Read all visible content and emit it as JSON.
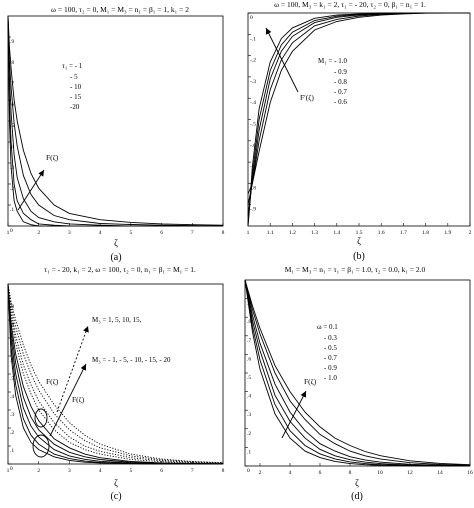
{
  "chart_data": [
    {
      "id": "a",
      "type": "line",
      "title": "ω = 100, τ₂ = 0, M₁ = M₃ = n₁ = β₁ = 1, k₁ = 2",
      "xlabel": "ζ",
      "ylabel": "",
      "caption": "(a)",
      "xlim": [
        1,
        8
      ],
      "ylim": [
        0,
        1
      ],
      "xticks": [
        1,
        2,
        3,
        4,
        5,
        6,
        7,
        8
      ],
      "yticks": [
        0,
        0.1,
        0.2,
        0.3,
        0.4,
        0.5,
        0.6,
        0.7,
        0.8,
        0.9
      ],
      "legend_title": "τ₁ = - 1",
      "legend_items": [
        "- 5",
        "- 10",
        "- 15",
        "-20"
      ],
      "annotation": "F(ζ)",
      "series": [
        {
          "x": [
            1,
            1.05,
            1.1,
            1.2,
            1.3,
            1.5,
            1.75,
            2,
            2.5,
            3,
            4,
            5,
            6,
            7,
            8
          ],
          "y": [
            1,
            0.49,
            0.28,
            0.12,
            0.07,
            0.02,
            0.006,
            0,
            0,
            0,
            0,
            0,
            0,
            0,
            0
          ]
        },
        {
          "x": [
            1,
            1.05,
            1.1,
            1.2,
            1.3,
            1.5,
            1.75,
            2,
            2.5,
            3,
            4,
            5,
            6,
            7,
            8
          ],
          "y": [
            1,
            0.58,
            0.4,
            0.2,
            0.12,
            0.06,
            0.03,
            0.01,
            0.004,
            0,
            0,
            0,
            0,
            0,
            0
          ]
        },
        {
          "x": [
            1,
            1.05,
            1.1,
            1.2,
            1.3,
            1.5,
            1.75,
            2,
            2.5,
            3,
            4,
            5,
            6,
            7,
            8
          ],
          "y": [
            1,
            0.7,
            0.54,
            0.34,
            0.23,
            0.13,
            0.07,
            0.04,
            0.02,
            0.01,
            0.004,
            0,
            0,
            0,
            0
          ]
        },
        {
          "x": [
            1,
            1.05,
            1.1,
            1.2,
            1.3,
            1.5,
            1.75,
            2,
            2.5,
            3,
            4,
            5,
            6,
            7,
            8
          ],
          "y": [
            1,
            0.78,
            0.66,
            0.49,
            0.38,
            0.24,
            0.15,
            0.1,
            0.05,
            0.03,
            0.012,
            0.007,
            0.004,
            0.002,
            0.001
          ]
        },
        {
          "x": [
            1,
            1.05,
            1.1,
            1.2,
            1.3,
            1.5,
            1.75,
            2,
            2.5,
            3,
            4,
            5,
            6,
            7,
            8
          ],
          "y": [
            1,
            0.85,
            0.75,
            0.6,
            0.5,
            0.36,
            0.25,
            0.18,
            0.1,
            0.06,
            0.03,
            0.017,
            0.01,
            0.006,
            0.004
          ]
        }
      ]
    },
    {
      "id": "b",
      "type": "line",
      "title": "ω = 100, M₃ = k₁ = 2, τ₁ = - 20, τ₂ = 0, β₁ = n₁ = 1.",
      "xlabel": "ζ",
      "ylabel": "",
      "caption": "(b)",
      "xlim": [
        1,
        2
      ],
      "ylim": [
        -1,
        0
      ],
      "xticks": [
        1,
        1.1,
        1.2,
        1.3,
        1.4,
        1.5,
        1.6,
        1.7,
        1.8,
        1.9,
        2
      ],
      "yticks": [
        0,
        -0.1,
        -0.2,
        -0.3,
        -0.4,
        -0.5,
        -0.6,
        -0.7,
        -0.8,
        -0.9
      ],
      "legend_title": "M₁ = - 1.0",
      "legend_items": [
        "- 0.9",
        "- 0.8",
        "- 0.7",
        "- 0.6"
      ],
      "annotation": "F′(ζ)",
      "series": [
        {
          "x": [
            1,
            1.02,
            1.05,
            1.1,
            1.15,
            1.2,
            1.3,
            1.4,
            1.5,
            1.6,
            1.7,
            1.8,
            1.9,
            2
          ],
          "y": [
            -1,
            -0.72,
            -0.45,
            -0.23,
            -0.12,
            -0.07,
            -0.025,
            -0.01,
            -0.004,
            0,
            0,
            0,
            0,
            0
          ]
        },
        {
          "x": [
            1,
            1.02,
            1.05,
            1.1,
            1.15,
            1.2,
            1.3,
            1.4,
            1.5,
            1.6,
            1.7,
            1.8,
            1.9,
            2
          ],
          "y": [
            -1,
            -0.76,
            -0.5,
            -0.27,
            -0.15,
            -0.09,
            -0.035,
            -0.015,
            -0.006,
            -0.002,
            0,
            0,
            0,
            0
          ]
        },
        {
          "x": [
            1,
            1.02,
            1.05,
            1.1,
            1.15,
            1.2,
            1.3,
            1.4,
            1.5,
            1.6,
            1.7,
            1.8,
            1.9,
            2
          ],
          "y": [
            -0.95,
            -0.79,
            -0.55,
            -0.31,
            -0.18,
            -0.11,
            -0.045,
            -0.02,
            -0.009,
            -0.004,
            -0.001,
            0,
            0,
            0
          ]
        },
        {
          "x": [
            1,
            1.02,
            1.05,
            1.1,
            1.15,
            1.2,
            1.3,
            1.4,
            1.5,
            1.6,
            1.7,
            1.8,
            1.9,
            2
          ],
          "y": [
            -0.9,
            -0.8,
            -0.6,
            -0.36,
            -0.22,
            -0.14,
            -0.06,
            -0.03,
            -0.014,
            -0.006,
            -0.002,
            0,
            0,
            0
          ]
        },
        {
          "x": [
            1,
            1.02,
            1.05,
            1.1,
            1.15,
            1.2,
            1.3,
            1.4,
            1.5,
            1.6,
            1.7,
            1.8,
            1.9,
            2
          ],
          "y": [
            -0.85,
            -0.8,
            -0.65,
            -0.42,
            -0.27,
            -0.18,
            -0.08,
            -0.04,
            -0.02,
            -0.01,
            -0.004,
            -0.001,
            0,
            0
          ]
        }
      ]
    },
    {
      "id": "c",
      "type": "line",
      "title": "τ₁ = - 20, k₁ = 2, ω = 100, τ₂ = 0, n₁ = β₁ = M₁ = 1.",
      "xlabel": "ζ",
      "ylabel": "",
      "caption": "(c)",
      "xlim": [
        1,
        8
      ],
      "ylim": [
        0,
        1
      ],
      "xticks": [
        1,
        2,
        3,
        4,
        5,
        6,
        7,
        8
      ],
      "yticks": [
        0,
        0.1,
        0.2,
        0.3,
        0.4,
        0.5,
        0.6,
        0.7,
        0.8,
        0.9
      ],
      "legend_items": [
        "M₃ = 1, 5, 10, 15,",
        "M₃ = - 1, - 5, - 10, - 15, - 20"
      ],
      "annotations": [
        "F(ζ)",
        "F(ζ)"
      ],
      "series_dotted": [
        {
          "x": [
            1,
            1.1,
            1.25,
            1.5,
            1.75,
            2,
            2.5,
            3,
            3.5,
            4,
            5,
            6,
            7,
            8
          ],
          "y": [
            1,
            0.82,
            0.67,
            0.5,
            0.39,
            0.3,
            0.19,
            0.12,
            0.08,
            0.055,
            0.025,
            0.012,
            0.006,
            0.003
          ]
        },
        {
          "x": [
            1,
            1.1,
            1.25,
            1.5,
            1.75,
            2,
            2.5,
            3,
            3.5,
            4,
            5,
            6,
            7,
            8
          ],
          "y": [
            1,
            0.85,
            0.71,
            0.55,
            0.44,
            0.35,
            0.23,
            0.15,
            0.1,
            0.07,
            0.035,
            0.018,
            0.009,
            0.005
          ]
        },
        {
          "x": [
            1,
            1.1,
            1.25,
            1.5,
            1.75,
            2,
            2.5,
            3,
            3.5,
            4,
            5,
            6,
            7,
            8
          ],
          "y": [
            1,
            0.88,
            0.76,
            0.61,
            0.5,
            0.41,
            0.28,
            0.19,
            0.13,
            0.09,
            0.045,
            0.023,
            0.012,
            0.006
          ]
        },
        {
          "x": [
            1,
            1.1,
            1.25,
            1.5,
            1.75,
            2,
            2.5,
            3,
            3.5,
            4,
            5,
            6,
            7,
            8
          ],
          "y": [
            1,
            0.9,
            0.8,
            0.66,
            0.55,
            0.46,
            0.33,
            0.23,
            0.16,
            0.11,
            0.055,
            0.028,
            0.014,
            0.007
          ]
        }
      ],
      "series_solid": [
        {
          "x": [
            1,
            1.1,
            1.25,
            1.5,
            1.75,
            2,
            2.5,
            3,
            3.5,
            4,
            5,
            6,
            7,
            8
          ],
          "y": [
            1,
            0.6,
            0.38,
            0.2,
            0.12,
            0.08,
            0.04,
            0.02,
            0.01,
            0.006,
            0.002,
            0,
            0,
            0
          ]
        },
        {
          "x": [
            1,
            1.1,
            1.25,
            1.5,
            1.75,
            2,
            2.5,
            3,
            3.5,
            4,
            5,
            6,
            7,
            8
          ],
          "y": [
            1,
            0.65,
            0.44,
            0.25,
            0.16,
            0.11,
            0.055,
            0.03,
            0.016,
            0.009,
            0.003,
            0.001,
            0,
            0
          ]
        },
        {
          "x": [
            1,
            1.1,
            1.25,
            1.5,
            1.75,
            2,
            2.5,
            3,
            3.5,
            4,
            5,
            6,
            7,
            8
          ],
          "y": [
            1,
            0.7,
            0.5,
            0.31,
            0.21,
            0.15,
            0.08,
            0.045,
            0.026,
            0.015,
            0.005,
            0.002,
            0.001,
            0
          ]
        },
        {
          "x": [
            1,
            1.1,
            1.25,
            1.5,
            1.75,
            2,
            2.5,
            3,
            3.5,
            4,
            5,
            6,
            7,
            8
          ],
          "y": [
            1,
            0.74,
            0.56,
            0.37,
            0.26,
            0.19,
            0.11,
            0.065,
            0.04,
            0.025,
            0.009,
            0.004,
            0.002,
            0.001
          ]
        },
        {
          "x": [
            1,
            1.1,
            1.25,
            1.5,
            1.75,
            2,
            2.5,
            3,
            3.5,
            4,
            5,
            6,
            7,
            8
          ],
          "y": [
            1,
            0.78,
            0.61,
            0.43,
            0.32,
            0.24,
            0.14,
            0.09,
            0.055,
            0.035,
            0.014,
            0.006,
            0.003,
            0.001
          ]
        }
      ]
    },
    {
      "id": "d",
      "type": "line",
      "title": "M₁ = M₃ = n₁ = τ₁ = β₁ = 1.0, τ₂ = 0.0, k₁ = 2.0",
      "xlabel": "ζ",
      "ylabel": "",
      "caption": "(d)",
      "xlim": [
        1,
        16
      ],
      "ylim": [
        0,
        1
      ],
      "xticks": [
        2,
        4,
        6,
        8,
        10,
        12,
        14,
        16
      ],
      "yticks": [
        0,
        0.1,
        0.2,
        0.3,
        0.4,
        0.5,
        0.6,
        0.7,
        0.8,
        0.9
      ],
      "legend_title": "ω = 0.1",
      "legend_items": [
        "- 0.3",
        "- 0.5",
        "- 0.7",
        "- 0.9",
        "- 1.0"
      ],
      "annotation": "F(ζ)",
      "series": [
        {
          "x": [
            1,
            1.5,
            2,
            3,
            4,
            5,
            6,
            7,
            8,
            9,
            10,
            12,
            14,
            16
          ],
          "y": [
            1,
            0.72,
            0.52,
            0.28,
            0.15,
            0.08,
            0.045,
            0.025,
            0.013,
            0.007,
            0.004,
            0.001,
            0,
            0
          ]
        },
        {
          "x": [
            1,
            1.5,
            2,
            3,
            4,
            5,
            6,
            7,
            8,
            9,
            10,
            12,
            14,
            16
          ],
          "y": [
            1,
            0.75,
            0.57,
            0.33,
            0.19,
            0.11,
            0.065,
            0.038,
            0.022,
            0.013,
            0.007,
            0.002,
            0.001,
            0
          ]
        },
        {
          "x": [
            1,
            1.5,
            2,
            3,
            4,
            5,
            6,
            7,
            8,
            9,
            10,
            12,
            14,
            16
          ],
          "y": [
            1,
            0.78,
            0.62,
            0.38,
            0.24,
            0.15,
            0.09,
            0.055,
            0.034,
            0.021,
            0.013,
            0.005,
            0.002,
            0.001
          ]
        },
        {
          "x": [
            1,
            1.5,
            2,
            3,
            4,
            5,
            6,
            7,
            8,
            9,
            10,
            12,
            14,
            16
          ],
          "y": [
            1,
            0.81,
            0.66,
            0.44,
            0.29,
            0.19,
            0.12,
            0.08,
            0.05,
            0.033,
            0.021,
            0.009,
            0.004,
            0.002
          ]
        },
        {
          "x": [
            1,
            1.5,
            2,
            3,
            4,
            5,
            6,
            7,
            8,
            9,
            10,
            12,
            14,
            16
          ],
          "y": [
            1,
            0.84,
            0.71,
            0.5,
            0.35,
            0.25,
            0.17,
            0.12,
            0.08,
            0.055,
            0.038,
            0.018,
            0.008,
            0.004
          ]
        },
        {
          "x": [
            1,
            1.5,
            2,
            3,
            4,
            5,
            6,
            7,
            8,
            9,
            10,
            12,
            14,
            16
          ],
          "y": [
            1,
            0.86,
            0.74,
            0.54,
            0.4,
            0.29,
            0.21,
            0.15,
            0.11,
            0.078,
            0.056,
            0.028,
            0.014,
            0.007
          ]
        }
      ]
    }
  ]
}
